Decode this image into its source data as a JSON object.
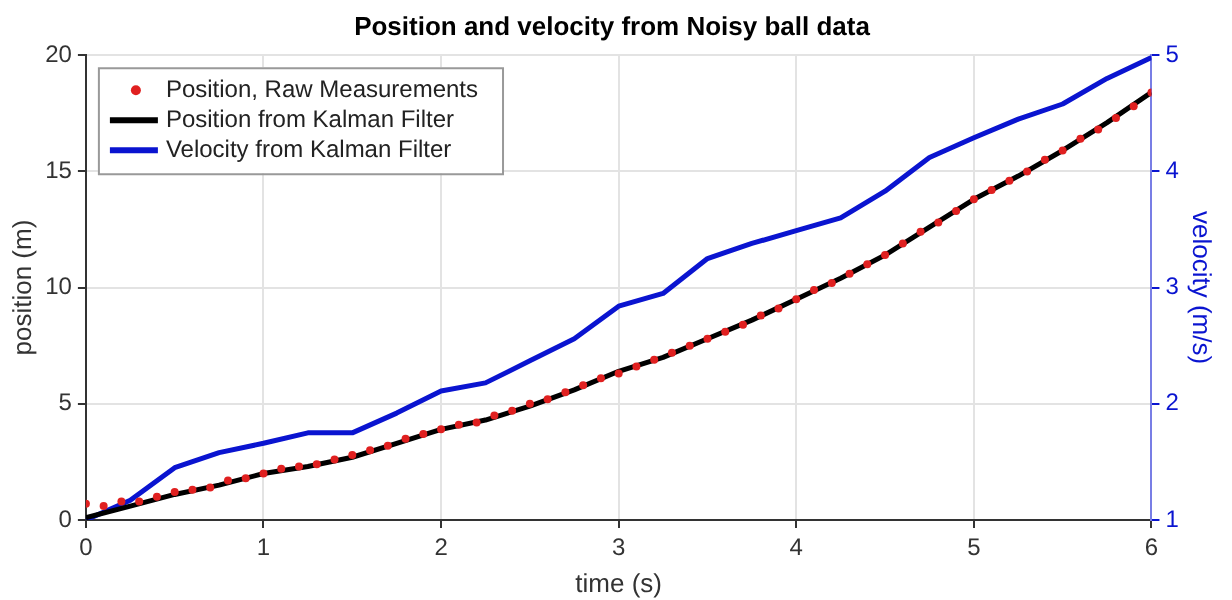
{
  "chart_data": {
    "type": "line",
    "title": "Position and velocity from Noisy ball data",
    "xlabel": "time (s)",
    "ylabel": "position (m)",
    "y2label": "velocity (m/s)",
    "xlim": [
      0,
      6
    ],
    "xticks": [
      0,
      1,
      2,
      3,
      4,
      5,
      6
    ],
    "ylim": [
      0,
      20
    ],
    "yticks": [
      0,
      5,
      10,
      15,
      20
    ],
    "y2lim": [
      1,
      5
    ],
    "y2ticks": [
      1,
      2,
      3,
      4,
      5
    ],
    "grid": true,
    "legend": "top left",
    "series": [
      {
        "name": "Position, Raw Measurements",
        "type": "scatter",
        "marker": "circle",
        "color": "#e02020",
        "x": [
          0,
          0.1,
          0.2,
          0.3,
          0.4,
          0.5,
          0.6,
          0.7,
          0.8,
          0.9,
          1.0,
          1.1,
          1.2,
          1.3,
          1.4,
          1.5,
          1.6,
          1.7,
          1.8,
          1.9,
          2.0,
          2.1,
          2.2,
          2.3,
          2.4,
          2.5,
          2.6,
          2.7,
          2.8,
          2.9,
          3.0,
          3.1,
          3.2,
          3.3,
          3.4,
          3.5,
          3.6,
          3.7,
          3.8,
          3.9,
          4.0,
          4.1,
          4.2,
          4.3,
          4.4,
          4.5,
          4.6,
          4.7,
          4.8,
          4.9,
          5.0,
          5.1,
          5.2,
          5.3,
          5.4,
          5.5,
          5.6,
          5.7,
          5.8,
          5.9,
          6.0
        ],
        "values": [
          0.7,
          0.6,
          0.8,
          0.8,
          1.0,
          1.2,
          1.3,
          1.4,
          1.7,
          1.8,
          2.0,
          2.2,
          2.3,
          2.4,
          2.6,
          2.8,
          3.0,
          3.2,
          3.5,
          3.7,
          3.9,
          4.1,
          4.2,
          4.5,
          4.7,
          5.0,
          5.2,
          5.5,
          5.8,
          6.1,
          6.3,
          6.6,
          6.9,
          7.2,
          7.5,
          7.8,
          8.1,
          8.4,
          8.8,
          9.1,
          9.5,
          9.9,
          10.2,
          10.6,
          11.0,
          11.4,
          11.9,
          12.4,
          12.8,
          13.3,
          13.8,
          14.2,
          14.6,
          15.0,
          15.5,
          15.9,
          16.4,
          16.8,
          17.3,
          17.8,
          18.4
        ]
      },
      {
        "name": "Position from Kalman Filter",
        "marker": "none",
        "color": "#000000",
        "x": [
          0,
          0.25,
          0.5,
          0.75,
          1,
          1.25,
          1.5,
          1.75,
          2,
          2.25,
          2.5,
          2.75,
          3,
          3.25,
          3.5,
          3.75,
          4,
          4.25,
          4.5,
          4.75,
          5,
          5.25,
          5.5,
          5.75,
          6
        ],
        "values": [
          0.1,
          0.6,
          1.1,
          1.5,
          2.0,
          2.3,
          2.7,
          3.3,
          3.9,
          4.3,
          4.9,
          5.6,
          6.4,
          7.0,
          7.8,
          8.6,
          9.5,
          10.4,
          11.4,
          12.6,
          13.8,
          14.8,
          15.9,
          17.1,
          18.4
        ]
      },
      {
        "name": "Velocity from Kalman Filter",
        "marker": "none",
        "axis": "y2",
        "color": "#0a14d0",
        "x": [
          0,
          0.25,
          0.5,
          0.75,
          1,
          1.25,
          1.5,
          1.75,
          2,
          2.25,
          2.5,
          2.75,
          3,
          3.25,
          3.5,
          3.75,
          4,
          4.25,
          4.5,
          4.75,
          5,
          5.25,
          5.5,
          5.75,
          6
        ],
        "values": [
          1.0,
          1.17,
          1.45,
          1.58,
          1.66,
          1.75,
          1.75,
          1.92,
          2.11,
          2.18,
          2.37,
          2.56,
          2.84,
          2.95,
          3.25,
          3.38,
          3.49,
          3.6,
          3.83,
          4.12,
          4.29,
          4.45,
          4.58,
          4.8,
          4.98
        ]
      }
    ]
  }
}
